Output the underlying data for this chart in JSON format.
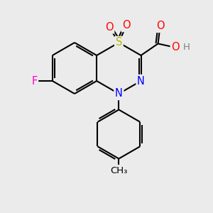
{
  "bg_color": "#ebebeb",
  "atom_colors": {
    "C": "#000000",
    "N": "#0000ff",
    "S": "#b8b800",
    "O": "#ff0000",
    "F": "#ff00cc",
    "H": "#808080"
  },
  "bond_color": "#000000",
  "bond_width": 1.5,
  "font_size": 10.5,
  "title": ""
}
